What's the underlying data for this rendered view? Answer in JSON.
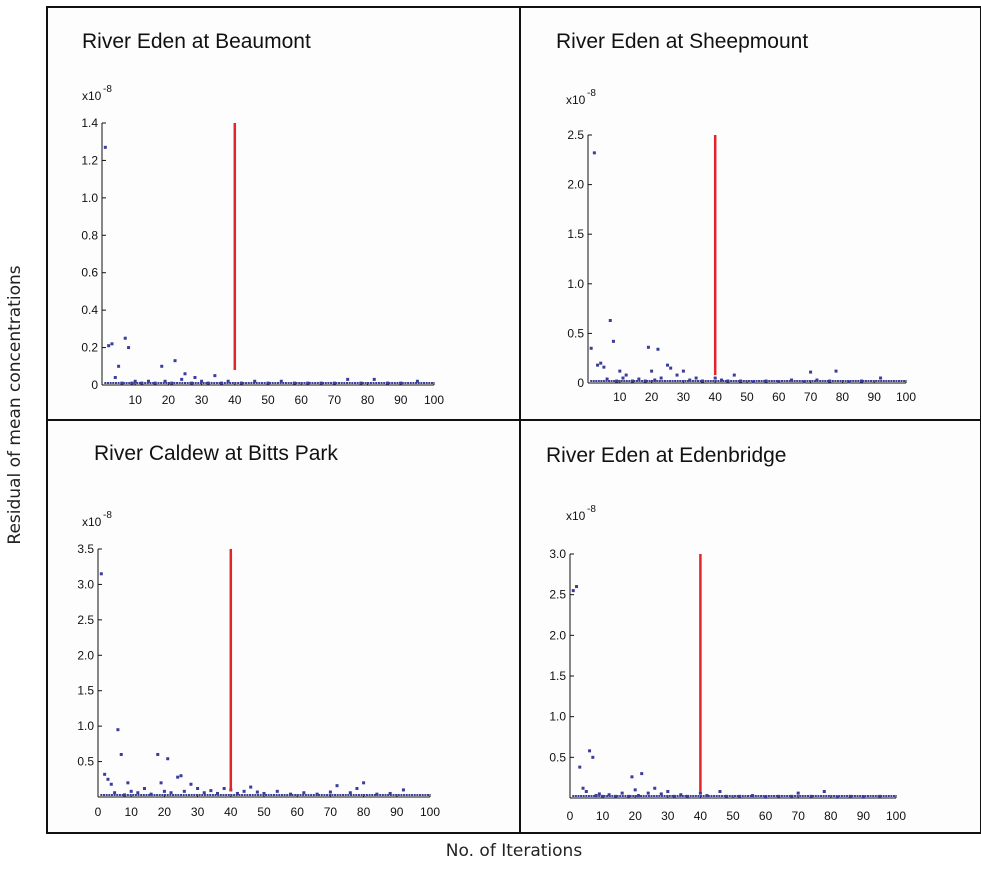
{
  "figure": {
    "ylabel": "Residual of mean concentrations",
    "xlabel": "No. of Iterations",
    "colors": {
      "points": "#3a3d9a",
      "marker": "#e0262b",
      "frame": "#111111",
      "panel_bg": "#fdfdfd"
    }
  },
  "chart_data": [
    {
      "type": "scatter",
      "title": "River Eden at Beaumont",
      "multiplier": "x10",
      "multiplier_exp": "-8",
      "ylim": [
        0,
        1.4
      ],
      "xlim": [
        0,
        100
      ],
      "yticks": [
        "0",
        "0.2",
        "0.4",
        "0.6",
        "0.8",
        "1.0",
        "1.2",
        "1.4"
      ],
      "xticks": [
        "10",
        "20",
        "30",
        "40",
        "50",
        "60",
        "70",
        "80",
        "90",
        "100"
      ],
      "marker_x": 40,
      "marker_y": 1.4,
      "points": [
        [
          1,
          1.27
        ],
        [
          2,
          0.21
        ],
        [
          3,
          0.22
        ],
        [
          4,
          0.04
        ],
        [
          5,
          0.1
        ],
        [
          6,
          0.01
        ],
        [
          7,
          0.25
        ],
        [
          8,
          0.2
        ],
        [
          9,
          0.01
        ],
        [
          10,
          0.02
        ],
        [
          12,
          0.01
        ],
        [
          14,
          0.02
        ],
        [
          16,
          0.01
        ],
        [
          18,
          0.1
        ],
        [
          19,
          0.02
        ],
        [
          21,
          0.01
        ],
        [
          22,
          0.13
        ],
        [
          24,
          0.03
        ],
        [
          25,
          0.06
        ],
        [
          27,
          0.01
        ],
        [
          28,
          0.04
        ],
        [
          30,
          0.02
        ],
        [
          32,
          0.01
        ],
        [
          34,
          0.05
        ],
        [
          36,
          0.01
        ],
        [
          38,
          0.02
        ],
        [
          42,
          0.01
        ],
        [
          46,
          0.02
        ],
        [
          50,
          0.01
        ],
        [
          54,
          0.02
        ],
        [
          58,
          0.01
        ],
        [
          62,
          0.01
        ],
        [
          66,
          0.01
        ],
        [
          70,
          0.01
        ],
        [
          74,
          0.03
        ],
        [
          78,
          0.01
        ],
        [
          82,
          0.03
        ],
        [
          86,
          0.01
        ],
        [
          90,
          0.01
        ],
        [
          95,
          0.02
        ]
      ]
    },
    {
      "type": "scatter",
      "title": "River Eden at Sheepmount",
      "multiplier": "x10",
      "multiplier_exp": "-8",
      "ylim": [
        0,
        2.5
      ],
      "xlim": [
        0,
        100
      ],
      "yticks": [
        "0",
        "0.5",
        "1.0",
        "1.5",
        "2.0",
        "2.5"
      ],
      "xticks": [
        "10",
        "20",
        "30",
        "40",
        "50",
        "60",
        "70",
        "80",
        "90",
        "100"
      ],
      "marker_x": 40,
      "marker_y": 2.5,
      "points": [
        [
          1,
          0.35
        ],
        [
          2,
          2.32
        ],
        [
          3,
          0.18
        ],
        [
          4,
          0.2
        ],
        [
          5,
          0.16
        ],
        [
          6,
          0.04
        ],
        [
          7,
          0.63
        ],
        [
          8,
          0.42
        ],
        [
          9,
          0.02
        ],
        [
          10,
          0.12
        ],
        [
          11,
          0.05
        ],
        [
          12,
          0.08
        ],
        [
          14,
          0.02
        ],
        [
          16,
          0.04
        ],
        [
          18,
          0.02
        ],
        [
          19,
          0.36
        ],
        [
          20,
          0.12
        ],
        [
          21,
          0.03
        ],
        [
          22,
          0.34
        ],
        [
          23,
          0.05
        ],
        [
          25,
          0.18
        ],
        [
          26,
          0.15
        ],
        [
          28,
          0.08
        ],
        [
          30,
          0.12
        ],
        [
          32,
          0.03
        ],
        [
          34,
          0.05
        ],
        [
          36,
          0.02
        ],
        [
          40,
          0.05
        ],
        [
          42,
          0.03
        ],
        [
          44,
          0.02
        ],
        [
          46,
          0.08
        ],
        [
          48,
          0.02
        ],
        [
          52,
          0.01
        ],
        [
          56,
          0.02
        ],
        [
          60,
          0.01
        ],
        [
          64,
          0.03
        ],
        [
          68,
          0.01
        ],
        [
          70,
          0.11
        ],
        [
          72,
          0.03
        ],
        [
          76,
          0.02
        ],
        [
          78,
          0.12
        ],
        [
          82,
          0.01
        ],
        [
          86,
          0.02
        ],
        [
          92,
          0.05
        ]
      ]
    },
    {
      "type": "scatter",
      "title": "River Caldew at Bitts Park",
      "multiplier": "x10",
      "multiplier_exp": "-8",
      "ylim": [
        0,
        3.5
      ],
      "xlim": [
        0,
        100
      ],
      "yticks": [
        "0.5",
        "1.0",
        "1.5",
        "2.0",
        "2.5",
        "3.0",
        "3.5"
      ],
      "xticks": [
        "0",
        "10",
        "20",
        "30",
        "40",
        "50",
        "60",
        "70",
        "80",
        "90",
        "100"
      ],
      "marker_x": 40,
      "marker_y": 3.5,
      "points": [
        [
          1,
          3.15
        ],
        [
          2,
          0.32
        ],
        [
          3,
          0.25
        ],
        [
          4,
          0.18
        ],
        [
          5,
          0.06
        ],
        [
          6,
          0.95
        ],
        [
          7,
          0.6
        ],
        [
          8,
          0.03
        ],
        [
          9,
          0.2
        ],
        [
          10,
          0.08
        ],
        [
          12,
          0.06
        ],
        [
          14,
          0.12
        ],
        [
          16,
          0.04
        ],
        [
          18,
          0.6
        ],
        [
          19,
          0.2
        ],
        [
          20,
          0.08
        ],
        [
          21,
          0.54
        ],
        [
          22,
          0.06
        ],
        [
          24,
          0.28
        ],
        [
          25,
          0.3
        ],
        [
          26,
          0.08
        ],
        [
          28,
          0.18
        ],
        [
          30,
          0.12
        ],
        [
          32,
          0.06
        ],
        [
          34,
          0.09
        ],
        [
          36,
          0.05
        ],
        [
          38,
          0.12
        ],
        [
          40,
          0.1
        ],
        [
          42,
          0.05
        ],
        [
          44,
          0.08
        ],
        [
          46,
          0.14
        ],
        [
          48,
          0.07
        ],
        [
          50,
          0.05
        ],
        [
          54,
          0.08
        ],
        [
          58,
          0.04
        ],
        [
          62,
          0.06
        ],
        [
          66,
          0.04
        ],
        [
          70,
          0.07
        ],
        [
          72,
          0.16
        ],
        [
          76,
          0.06
        ],
        [
          78,
          0.12
        ],
        [
          80,
          0.2
        ],
        [
          84,
          0.04
        ],
        [
          88,
          0.05
        ],
        [
          92,
          0.1
        ]
      ]
    },
    {
      "type": "scatter",
      "title": "River Eden at Edenbridge",
      "multiplier": "x10",
      "multiplier_exp": "-8",
      "ylim": [
        0,
        3.0
      ],
      "xlim": [
        0,
        100
      ],
      "yticks": [
        "0.5",
        "1.0",
        "1.5",
        "2.0",
        "2.5",
        "3.0"
      ],
      "xticks": [
        "0",
        "10",
        "20",
        "30",
        "40",
        "50",
        "60",
        "70",
        "80",
        "90",
        "100"
      ],
      "marker_x": 40,
      "marker_y": 3.0,
      "points": [
        [
          1,
          2.55
        ],
        [
          2,
          2.6
        ],
        [
          3,
          0.38
        ],
        [
          4,
          0.12
        ],
        [
          5,
          0.08
        ],
        [
          6,
          0.58
        ],
        [
          7,
          0.5
        ],
        [
          8,
          0.03
        ],
        [
          9,
          0.05
        ],
        [
          10,
          0.02
        ],
        [
          12,
          0.04
        ],
        [
          14,
          0.02
        ],
        [
          16,
          0.06
        ],
        [
          18,
          0.02
        ],
        [
          19,
          0.26
        ],
        [
          20,
          0.1
        ],
        [
          21,
          0.03
        ],
        [
          22,
          0.3
        ],
        [
          24,
          0.06
        ],
        [
          26,
          0.12
        ],
        [
          28,
          0.05
        ],
        [
          30,
          0.08
        ],
        [
          32,
          0.02
        ],
        [
          34,
          0.04
        ],
        [
          36,
          0.02
        ],
        [
          40,
          0.06
        ],
        [
          42,
          0.03
        ],
        [
          46,
          0.08
        ],
        [
          48,
          0.02
        ],
        [
          52,
          0.02
        ],
        [
          56,
          0.03
        ],
        [
          60,
          0.01
        ],
        [
          64,
          0.02
        ],
        [
          68,
          0.02
        ],
        [
          70,
          0.06
        ],
        [
          74,
          0.02
        ],
        [
          78,
          0.08
        ],
        [
          82,
          0.01
        ],
        [
          86,
          0.02
        ],
        [
          90,
          0.01
        ],
        [
          95,
          0.02
        ]
      ]
    }
  ]
}
